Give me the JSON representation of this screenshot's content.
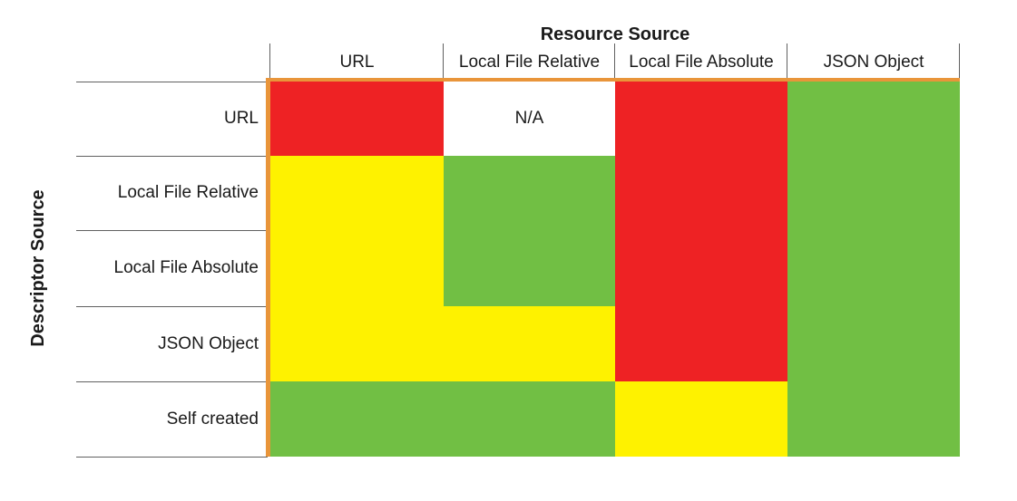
{
  "axes": {
    "columns_title": "Resource Source",
    "rows_title": "Descriptor Source"
  },
  "chart_data": {
    "type": "heatmap",
    "title": "Resource Source",
    "xlabel": "Resource Source",
    "ylabel": "Descriptor Source",
    "columns": [
      "URL",
      "Local File Relative",
      "Local File Absolute",
      "JSON Object"
    ],
    "rows": [
      "URL",
      "Local File Relative",
      "Local File Absolute",
      "JSON Object",
      "Self created"
    ],
    "na_label": "N/A",
    "matrix": [
      [
        "red",
        "na",
        "red",
        "green"
      ],
      [
        "yellow",
        "green",
        "red",
        "green"
      ],
      [
        "yellow",
        "green",
        "red",
        "green"
      ],
      [
        "yellow",
        "yellow",
        "red",
        "green"
      ],
      [
        "green",
        "green",
        "yellow",
        "green"
      ]
    ],
    "legend_position": "none",
    "grid": "header-lines-only"
  },
  "colors": {
    "red": "#EE2224",
    "yellow": "#FEF200",
    "green": "#71BF44",
    "na": "#FFFFFF",
    "border_orange": "#E9953A",
    "gridline": "#606060",
    "text": "#1A1A1A",
    "background": "#FFFFFF"
  }
}
